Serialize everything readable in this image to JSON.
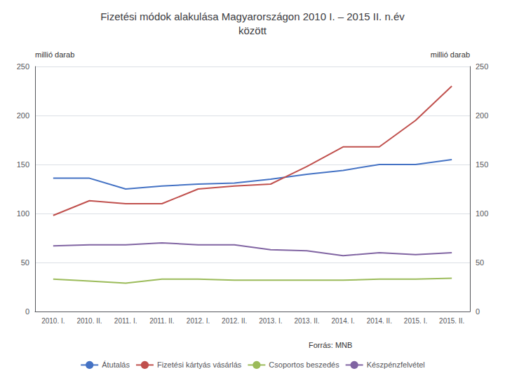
{
  "chart_data": {
    "type": "line",
    "title": "Fizetési módok alakulása Magyarországon 2010 I. – 2015 II. n.év\nközött",
    "ylabel": "millió darab",
    "y2label": "millió darab",
    "annotations": [
      "Forrás: MNB"
    ],
    "categories": [
      "2010. I.",
      "2010. II.",
      "2011. I.",
      "2011. II.",
      "2012. I.",
      "2012. II.",
      "2013. I.",
      "2013. II.",
      "2014. I.",
      "2014. II.",
      "2015. I.",
      "2015. II."
    ],
    "series": [
      {
        "name": "Átutalás",
        "color": "#4472C4",
        "values": [
          136,
          136,
          125,
          128,
          130,
          131,
          135,
          140,
          144,
          150,
          150,
          155
        ]
      },
      {
        "name": "Fizetési kártyás vásárlás",
        "color": "#C0504D",
        "values": [
          98,
          113,
          110,
          110,
          125,
          128,
          130,
          148,
          168,
          168,
          195,
          230
        ]
      },
      {
        "name": "Csoportos beszedés",
        "color": "#9BBB59",
        "values": [
          33,
          31,
          29,
          33,
          33,
          32,
          32,
          32,
          32,
          33,
          33,
          34
        ]
      },
      {
        "name": "Készpénzfelvétel",
        "color": "#8064A2",
        "values": [
          67,
          68,
          68,
          70,
          68,
          68,
          63,
          62,
          57,
          60,
          58,
          60
        ]
      }
    ],
    "ylim": [
      0,
      250
    ],
    "yticks": [
      0,
      50,
      100,
      150,
      200,
      250
    ],
    "y2lim": [
      0,
      250
    ],
    "y2ticks": [
      0,
      50,
      100,
      150,
      200,
      250
    ],
    "grid": true,
    "legend": "bottom"
  }
}
